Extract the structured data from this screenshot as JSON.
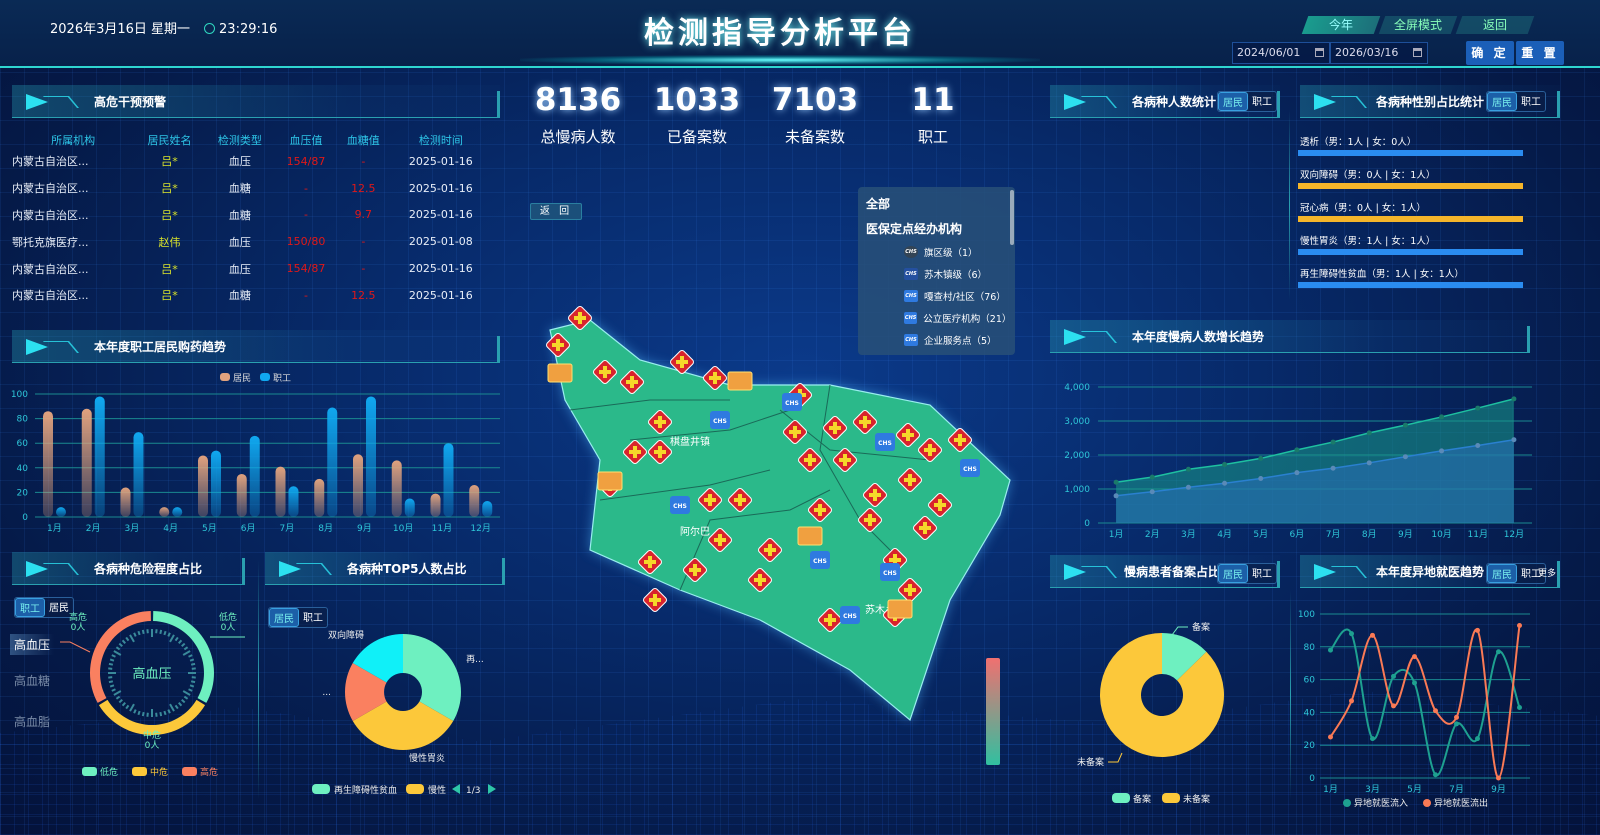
{
  "header": {
    "date": "2026年3月16日 星期一",
    "time": "23:29:16",
    "title": "检测指导分析平台",
    "tabs": [
      {
        "label": "今年",
        "active": true
      },
      {
        "label": "全屏模式",
        "active": false
      },
      {
        "label": "返回",
        "active": false
      }
    ],
    "start_date": "2024/06/01",
    "end_date": "2026/03/16",
    "confirm_label": "确 定",
    "reset_label": "重 置"
  },
  "alert_panel": {
    "title": "高危干预预警",
    "columns": [
      "所属机构",
      "居民姓名",
      "检测类型",
      "血压值",
      "血糖值",
      "检测时间"
    ],
    "rows": [
      [
        "内蒙古自治区...",
        "吕*",
        "血压",
        "154/87",
        "-",
        "2025-01-16"
      ],
      [
        "内蒙古自治区...",
        "吕*",
        "血糖",
        "-",
        "12.5",
        "2025-01-16"
      ],
      [
        "内蒙古自治区...",
        "吕*",
        "血糖",
        "-",
        "9.7",
        "2025-01-16"
      ],
      [
        "鄂托克旗医疗...",
        "赵伟",
        "血压",
        "150/80",
        "-",
        "2025-01-08"
      ],
      [
        "内蒙古自治区...",
        "吕*",
        "血压",
        "154/87",
        "-",
        "2025-01-16"
      ],
      [
        "内蒙古自治区...",
        "吕*",
        "血糖",
        "-",
        "12.5",
        "2025-01-16"
      ]
    ]
  },
  "stats": [
    {
      "value": "8136",
      "label": "总慢病人数"
    },
    {
      "value": "1033",
      "label": "已备案数"
    },
    {
      "value": "7103",
      "label": "未备案数"
    },
    {
      "value": "11",
      "label": "职工"
    }
  ],
  "map": {
    "back_label": "返 回",
    "place_labels": [
      "棋盘井镇",
      "阿尔巴",
      "苏木乡"
    ],
    "legend": {
      "all": "全部",
      "group": "医保定点经办机构",
      "items": [
        "旗区级（1）",
        "苏木镇级（6）",
        "嘎查村/社区（76）",
        "公立医疗机构（21）",
        "企业服务点（5）"
      ]
    },
    "colors": {
      "land": "#2bb98a",
      "marker": "#d8242c"
    }
  },
  "toggle": {
    "resident": "居民",
    "staff": "职工",
    "more": "更多"
  },
  "panels": {
    "purchase": "本年度职工居民购药趋势",
    "risk": "各病种危险程度占比",
    "top5": "各病种TOP5人数占比",
    "disease_count": "各病种人数统计",
    "gender": "各病种性别占比统计",
    "growth": "本年度慢病人数增长趋势",
    "filing": "慢病患者备案占比",
    "remote": "本年度异地就医趋势"
  },
  "gender_stats": [
    {
      "label": "透析（男：1人 | 女：0人）",
      "color": "#2a8cf0"
    },
    {
      "label": "双向障碍（男：0人 | 女：1人）",
      "color": "#f5b52a"
    },
    {
      "label": "冠心病（男：0人 | 女：1人）",
      "color": "#f5b52a"
    },
    {
      "label": "慢性胃炎（男：1人 | 女：1人）",
      "color": "#2a8cf0"
    },
    {
      "label": "再生障碍性贫血（男：1人 | 女：1人）",
      "color": "#2a8cf0"
    }
  ],
  "risk_side": [
    "高血压",
    "高血糖",
    "高血脂"
  ],
  "chart_data": [
    {
      "type": "bar",
      "id": "purchase",
      "categories": [
        "1月",
        "2月",
        "3月",
        "4月",
        "5月",
        "6月",
        "7月",
        "8月",
        "9月",
        "10月",
        "11月",
        "12月"
      ],
      "series": [
        {
          "name": "居民",
          "color": "#e0a27e",
          "values": [
            86,
            88,
            24,
            8,
            50,
            35,
            41,
            31,
            51,
            46,
            19,
            26
          ]
        },
        {
          "name": "职工",
          "color": "#10a8f0",
          "values": [
            8,
            98,
            69,
            8,
            54,
            66,
            25,
            89,
            98,
            15,
            60,
            13
          ]
        }
      ],
      "ylim": [
        0,
        100
      ],
      "yticks": [
        0,
        20,
        40,
        60,
        80,
        100
      ],
      "legend": "top",
      "grid": true
    },
    {
      "type": "pie",
      "id": "risk",
      "center_label": "高血压",
      "slices": [
        {
          "name": "低危",
          "value": 0,
          "label": "低危\n0人",
          "color": "#6ef0c0"
        },
        {
          "name": "中危",
          "value": 0,
          "label": "中危\n0人",
          "color": "#fcc83a"
        },
        {
          "name": "高危",
          "value": 0,
          "label": "高危\n0人",
          "color": "#fa8060"
        }
      ],
      "legend": "bottom"
    },
    {
      "type": "pie",
      "id": "top5",
      "slices": [
        {
          "name": "再生障碍性贫血",
          "value": 2,
          "label": "再...",
          "color": "#6ef0c0"
        },
        {
          "name": "慢性胃炎",
          "value": 2,
          "label": "慢性胃炎",
          "color": "#fcc83a"
        },
        {
          "name": "...",
          "value": 1,
          "label": "...",
          "color": "#fa8060"
        },
        {
          "name": "双向障碍",
          "value": 1,
          "label": "双向障碍",
          "color": "#10f0f8"
        }
      ],
      "legend": "bottom",
      "legend_visible": [
        "再生障碍性贫血",
        "慢性"
      ],
      "legend_page": "1/3"
    },
    {
      "type": "area",
      "id": "growth",
      "categories": [
        "1月",
        "2月",
        "3月",
        "4月",
        "5月",
        "6月",
        "7月",
        "8月",
        "9月",
        "10月",
        "11月",
        "12月"
      ],
      "series": [
        {
          "color": "#1a9a8a",
          "values": [
            1200,
            1350,
            1580,
            1720,
            1900,
            2150,
            2380,
            2650,
            2880,
            3120,
            3380,
            3650
          ]
        },
        {
          "color": "#2a70b8",
          "values": [
            800,
            920,
            1050,
            1170,
            1310,
            1480,
            1610,
            1770,
            1950,
            2120,
            2280,
            2450
          ]
        }
      ],
      "ylim": [
        0,
        4000
      ],
      "yticks": [
        "0",
        "1,000",
        "2,000",
        "3,000",
        "4,000"
      ],
      "grid": true
    },
    {
      "type": "pie",
      "id": "filing",
      "slices": [
        {
          "name": "备案",
          "value": 1033,
          "color": "#6ef0c0"
        },
        {
          "name": "未备案",
          "value": 7103,
          "color": "#fcc83a"
        }
      ],
      "legend": "bottom"
    },
    {
      "type": "line",
      "id": "remote",
      "categories": [
        "1月",
        "2月",
        "3月",
        "4月",
        "5月",
        "6月",
        "7月",
        "8月",
        "9月",
        "10月"
      ],
      "xtick_labels": [
        "1月",
        "3月",
        "5月",
        "7月",
        "9月"
      ],
      "series": [
        {
          "name": "异地就医流入",
          "color": "#1ea090",
          "values": [
            78,
            88,
            24,
            62,
            58,
            2,
            33,
            24,
            77,
            43
          ]
        },
        {
          "name": "异地就医流出",
          "color": "#fa7a55",
          "values": [
            25,
            47,
            87,
            44,
            74,
            41,
            37,
            90,
            0,
            93
          ]
        }
      ],
      "ylim": [
        0,
        100
      ],
      "yticks": [
        0,
        20,
        40,
        60,
        80,
        100
      ],
      "smooth": true,
      "legend": "bottom",
      "grid": true
    }
  ]
}
